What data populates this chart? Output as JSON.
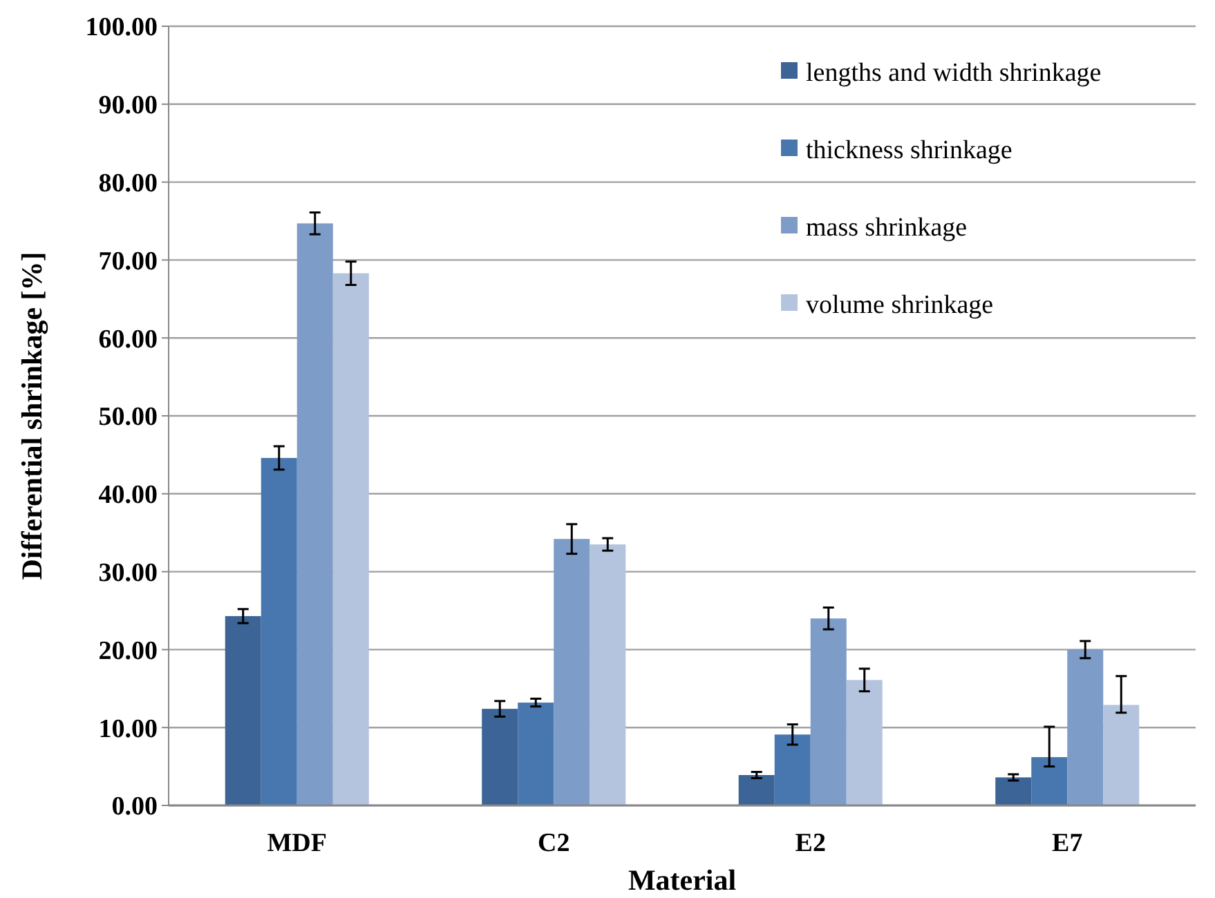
{
  "chart_data": {
    "type": "bar",
    "xlabel": "Material",
    "ylabel": "Differential shrinkage [%]",
    "categories": [
      "MDF",
      "C2",
      "E2",
      "E7"
    ],
    "series": [
      {
        "name": "lengths and width shrinkage",
        "color": "#3c6496",
        "values": [
          24.3,
          12.4,
          3.9,
          3.6
        ],
        "errors": [
          0.9,
          1.0,
          0.4,
          0.4
        ]
      },
      {
        "name": "thickness shrinkage",
        "color": "#4877b0",
        "values": [
          44.6,
          13.2,
          9.1,
          6.2
        ],
        "errors": [
          1.5,
          0.5,
          1.3,
          [
            5.0,
            10.1
          ]
        ]
      },
      {
        "name": "mass shrinkage",
        "color": "#7e9cc8",
        "values": [
          74.7,
          34.2,
          24.0,
          20.0
        ],
        "errors": [
          1.4,
          1.9,
          1.4,
          1.1
        ]
      },
      {
        "name": "volume shrinkage",
        "color": "#b5c4de",
        "values": [
          68.3,
          33.5,
          16.1,
          12.9
        ],
        "errors": [
          1.5,
          0.8,
          1.45,
          [
            11.9,
            16.6
          ]
        ]
      }
    ],
    "ylim": [
      0,
      100
    ],
    "yticks": [
      {
        "value": 0,
        "label": "0.00"
      },
      {
        "value": 10,
        "label": "10.00"
      },
      {
        "value": 20,
        "label": "20.00"
      },
      {
        "value": 30,
        "label": "30.00"
      },
      {
        "value": 40,
        "label": "40.00"
      },
      {
        "value": 50,
        "label": "50.00"
      },
      {
        "value": 60,
        "label": "60.00"
      },
      {
        "value": 70,
        "label": "70.00"
      },
      {
        "value": 80,
        "label": "80.00"
      },
      {
        "value": 90,
        "label": "90.00"
      },
      {
        "value": 100,
        "label": "100.00"
      }
    ],
    "grid": "y",
    "legend": "top right"
  }
}
